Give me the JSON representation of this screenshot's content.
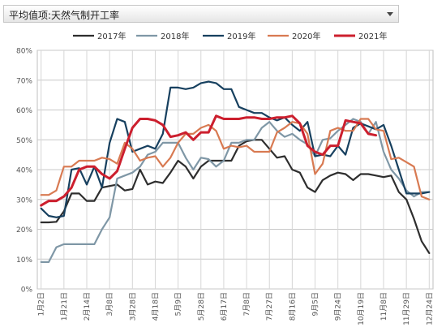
{
  "selector": {
    "label": "平均值项:天然气制开工率",
    "icon": "chevron-down-icon"
  },
  "chart_data": {
    "type": "line",
    "title": "",
    "xlabel": "",
    "ylabel": "",
    "ylim": [
      0,
      80
    ],
    "y_ticks": [
      "0%",
      "10%",
      "20%",
      "30%",
      "40%",
      "50%",
      "60%",
      "70%",
      "80%"
    ],
    "x_tick_labels": [
      "1月2日",
      "1月21日",
      "2月14日",
      "3月8日",
      "3月28日",
      "4月18日",
      "5月9日",
      "5月28日",
      "6月17日",
      "7月8日",
      "7月27日",
      "8月16日",
      "9月5日",
      "9月24日",
      "10月19日",
      "11月8日",
      "11月29日",
      "12月24日"
    ],
    "x_tick_weeks": [
      1,
      4,
      7,
      10,
      13,
      16,
      19,
      22,
      25,
      28,
      31,
      34,
      37,
      40,
      43,
      46,
      49,
      52
    ],
    "weeks": 52,
    "grid": true,
    "legend_position": "top",
    "series": [
      {
        "name": "2017年",
        "color": "#2e2e2e",
        "values": [
          22.3,
          22.3,
          22.5,
          26,
          32,
          32,
          29.5,
          29.5,
          34,
          34.5,
          35,
          33,
          33.5,
          40,
          35,
          36,
          35.5,
          39,
          43,
          41,
          37,
          41,
          43,
          43,
          43,
          43,
          48,
          49.5,
          50,
          50,
          47,
          44,
          44.5,
          40,
          39,
          34,
          32.5,
          36.5,
          38,
          39,
          38.5,
          36.5,
          38.5,
          38.5,
          38,
          37.5,
          38,
          32.5,
          30,
          23.5,
          16,
          12
        ]
      },
      {
        "name": "2018年",
        "color": "#7f97a6",
        "values": [
          9,
          9,
          14,
          15,
          15,
          15,
          15,
          15,
          20,
          24,
          37,
          38,
          39,
          41,
          45,
          46,
          49,
          49,
          49,
          44,
          40,
          44,
          43.5,
          41,
          43,
          49,
          49,
          50,
          50,
          54,
          56,
          53,
          51,
          52,
          50,
          48.5,
          44.5,
          50,
          50.5,
          53,
          55,
          57,
          56,
          52,
          56,
          46,
          40,
          37,
          33,
          31,
          32.5,
          32.5
        ]
      },
      {
        "name": "2019年",
        "color": "#17405f",
        "values": [
          27,
          24.5,
          24,
          24.5,
          40,
          40.5,
          35,
          41,
          34,
          49,
          57,
          56,
          46,
          47,
          48,
          47,
          52,
          67.5,
          67.5,
          67,
          67.5,
          69,
          69.5,
          69,
          67,
          67,
          61,
          60,
          59,
          59,
          57.5,
          56.5,
          57.5,
          55,
          53,
          56,
          44.5,
          45,
          44.5,
          48,
          45,
          54,
          55.5,
          54.5,
          53.5,
          55,
          48,
          40,
          32,
          32,
          32,
          32.5
        ]
      },
      {
        "name": "2020年",
        "color": "#d87a52",
        "values": [
          31.5,
          31.5,
          33,
          41,
          41,
          43,
          43,
          43,
          44,
          43.5,
          42,
          49,
          47,
          43,
          44,
          44.5,
          41,
          44,
          49,
          52,
          52,
          54,
          55,
          53,
          47,
          48,
          47.5,
          48,
          46,
          46,
          46,
          52.5,
          54,
          56,
          55.5,
          52,
          38.5,
          42,
          53,
          54,
          53,
          53,
          57,
          57,
          53.5,
          53,
          43.5,
          44,
          42.5,
          41,
          31,
          30
        ]
      },
      {
        "name": "2021年",
        "color": "#cc1f2e",
        "values": [
          28,
          29.5,
          29.5,
          31,
          34,
          40,
          41,
          41,
          38.5,
          37,
          39.5,
          47,
          54,
          57,
          57,
          56.5,
          55,
          51,
          51.5,
          52.5,
          50,
          52.5,
          52.5,
          58,
          57,
          57,
          57,
          57.5,
          57.5,
          57,
          57,
          57.5,
          57.5,
          58,
          55.5,
          48,
          46,
          45,
          48,
          48,
          56.5,
          56,
          55.5,
          52,
          51.5
        ]
      }
    ]
  }
}
